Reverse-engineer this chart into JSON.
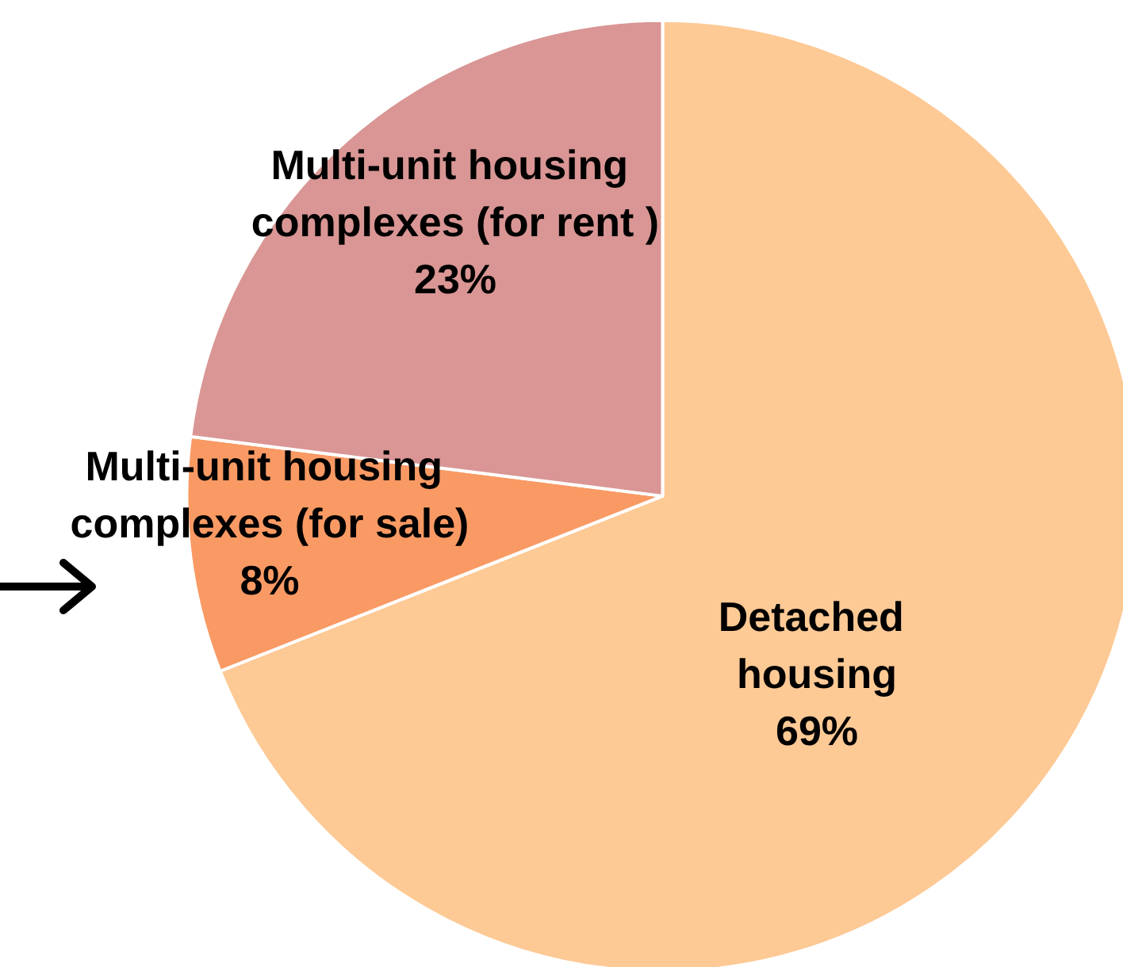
{
  "chart_data": {
    "type": "pie",
    "categories": [
      "Detached housing",
      "Multi-unit housing complexes (for sale)",
      "Multi-unit housing complexes (for rent )"
    ],
    "values": [
      69,
      8,
      23
    ],
    "colors": [
      "#fdc995",
      "#f99a64",
      "#d99694"
    ],
    "value_labels": [
      "69%",
      "8%",
      "23%"
    ],
    "legend": false
  }
}
